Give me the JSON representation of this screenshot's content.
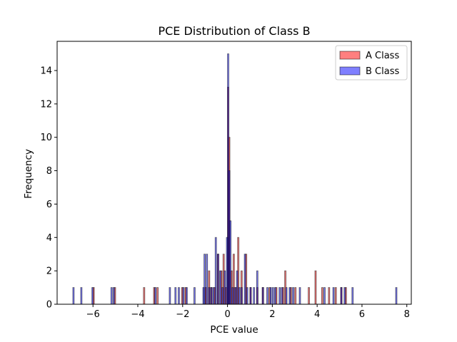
{
  "chart_data": {
    "type": "histogram",
    "title": "PCE Distribution of Class B",
    "xlabel": "PCE value",
    "ylabel": "Frequency",
    "xlim": [
      -7.6,
      8.2
    ],
    "ylim": [
      0,
      15.75
    ],
    "xticks": [
      -6,
      -4,
      -2,
      0,
      2,
      4,
      6,
      8
    ],
    "xtick_labels": [
      "−6",
      "−4",
      "−2",
      "0",
      "2",
      "4",
      "6",
      "8"
    ],
    "yticks": [
      0,
      2,
      4,
      6,
      8,
      10,
      12,
      14
    ],
    "ytick_labels": [
      "0",
      "2",
      "4",
      "6",
      "8",
      "10",
      "12",
      "14"
    ],
    "bin_width": 0.06,
    "legend_position": "top-right",
    "series": [
      {
        "name": "A Class",
        "color": "#ff0000",
        "alpha": 0.5,
        "bins": [
          [
            -6.0,
            1
          ],
          [
            -5.05,
            1
          ],
          [
            -3.75,
            1
          ],
          [
            -3.3,
            1
          ],
          [
            -3.15,
            1
          ],
          [
            -2.05,
            1
          ],
          [
            -1.9,
            1
          ],
          [
            -1.0,
            1
          ],
          [
            -0.85,
            2
          ],
          [
            -0.75,
            1
          ],
          [
            -0.6,
            1
          ],
          [
            -0.45,
            3
          ],
          [
            -0.3,
            2
          ],
          [
            -0.2,
            3
          ],
          [
            -0.1,
            1
          ],
          [
            0.0,
            13
          ],
          [
            0.05,
            10
          ],
          [
            0.15,
            2
          ],
          [
            0.25,
            3
          ],
          [
            0.35,
            1
          ],
          [
            0.45,
            4
          ],
          [
            0.6,
            2
          ],
          [
            0.8,
            3
          ],
          [
            1.0,
            1
          ],
          [
            1.3,
            1
          ],
          [
            1.55,
            1
          ],
          [
            1.85,
            1
          ],
          [
            2.15,
            1
          ],
          [
            2.45,
            1
          ],
          [
            2.55,
            2
          ],
          [
            2.8,
            1
          ],
          [
            3.0,
            1
          ],
          [
            3.6,
            1
          ],
          [
            3.9,
            2
          ],
          [
            4.2,
            1
          ],
          [
            4.5,
            1
          ],
          [
            4.8,
            1
          ],
          [
            5.05,
            1
          ],
          [
            5.25,
            1
          ]
        ]
      },
      {
        "name": "B Class",
        "color": "#0000ff",
        "alpha": 0.5,
        "bins": [
          [
            -6.9,
            1
          ],
          [
            -6.55,
            1
          ],
          [
            -6.05,
            1
          ],
          [
            -5.2,
            1
          ],
          [
            -5.1,
            1
          ],
          [
            -3.25,
            1
          ],
          [
            -2.6,
            1
          ],
          [
            -2.35,
            1
          ],
          [
            -2.2,
            1
          ],
          [
            -2.0,
            1
          ],
          [
            -1.85,
            1
          ],
          [
            -1.5,
            1
          ],
          [
            -1.1,
            1
          ],
          [
            -1.05,
            3
          ],
          [
            -0.95,
            3
          ],
          [
            -0.85,
            1
          ],
          [
            -0.75,
            1
          ],
          [
            -0.65,
            1
          ],
          [
            -0.55,
            4
          ],
          [
            -0.45,
            3
          ],
          [
            -0.35,
            2
          ],
          [
            -0.25,
            1
          ],
          [
            -0.15,
            2
          ],
          [
            -0.05,
            4
          ],
          [
            0.0,
            15
          ],
          [
            0.05,
            8
          ],
          [
            0.1,
            5
          ],
          [
            0.2,
            1
          ],
          [
            0.3,
            1
          ],
          [
            0.4,
            2
          ],
          [
            0.5,
            1
          ],
          [
            0.6,
            1
          ],
          [
            0.75,
            3
          ],
          [
            0.85,
            1
          ],
          [
            1.0,
            1
          ],
          [
            1.15,
            1
          ],
          [
            1.3,
            2
          ],
          [
            1.55,
            1
          ],
          [
            1.75,
            1
          ],
          [
            1.9,
            1
          ],
          [
            2.0,
            1
          ],
          [
            2.1,
            1
          ],
          [
            2.3,
            1
          ],
          [
            2.4,
            1
          ],
          [
            2.6,
            1
          ],
          [
            2.75,
            1
          ],
          [
            2.9,
            1
          ],
          [
            3.2,
            1
          ],
          [
            4.3,
            1
          ],
          [
            4.7,
            1
          ],
          [
            5.05,
            1
          ],
          [
            5.2,
            1
          ],
          [
            5.55,
            1
          ],
          [
            7.5,
            1
          ]
        ]
      }
    ]
  }
}
